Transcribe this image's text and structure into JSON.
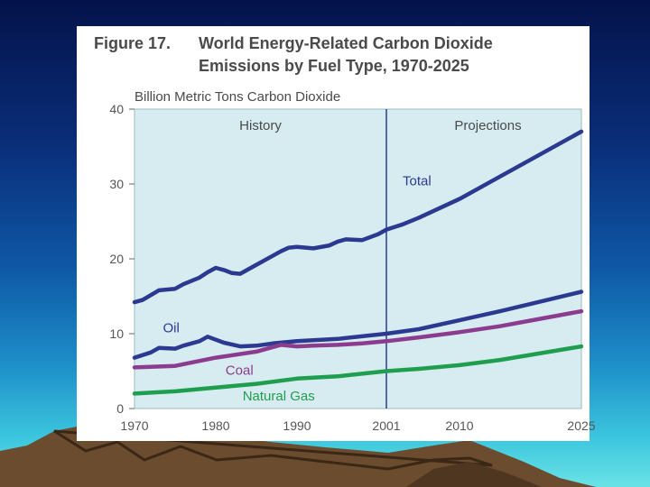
{
  "colors": {
    "plot_background": "#d7ecf0",
    "total": "#2b3990",
    "oil": "#2b3990",
    "coal": "#8b3c8f",
    "natural_gas": "#1f9e4f",
    "text": "#4a4a4a",
    "divider": "#2b3990"
  },
  "figure": {
    "prefix": "Figure 17.",
    "title_line1": "World Energy-Related Carbon Dioxide",
    "title_line2": "Emissions by Fuel Type, 1970-2025"
  },
  "chart_data": {
    "type": "line",
    "title": "Figure 17. World Energy-Related Carbon Dioxide Emissions by Fuel Type, 1970-2025",
    "ylabel": "Billion Metric Tons Carbon Dioxide",
    "xlabel": "",
    "xlim": [
      1970,
      2025
    ],
    "ylim": [
      0,
      40
    ],
    "x_ticks": [
      "1970",
      "1980",
      "1990",
      "2001",
      "2010",
      "2025"
    ],
    "x_tick_values": [
      1970,
      1980,
      1990,
      2001,
      2010,
      2025
    ],
    "y_ticks": [
      "0",
      "10",
      "20",
      "30",
      "40"
    ],
    "y_tick_values": [
      0,
      10,
      20,
      30,
      40
    ],
    "divider_year": 2001,
    "region_labels": {
      "history": "History",
      "projections": "Projections"
    },
    "series": [
      {
        "name": "Total",
        "color_key": "total",
        "label_pos": {
          "x": 2003,
          "y": 29.8
        },
        "x": [
          1970,
          1971,
          1973,
          1975,
          1976,
          1978,
          1979,
          1980,
          1981,
          1982,
          1983,
          1985,
          1987,
          1988,
          1989,
          1990,
          1992,
          1994,
          1995,
          1996,
          1998,
          2000,
          2001,
          2003,
          2005,
          2010,
          2015,
          2020,
          2025
        ],
        "y": [
          14.2,
          14.5,
          15.8,
          16.0,
          16.6,
          17.5,
          18.2,
          18.8,
          18.5,
          18.1,
          18.0,
          19.2,
          20.4,
          21.0,
          21.5,
          21.6,
          21.4,
          21.8,
          22.3,
          22.6,
          22.5,
          23.3,
          23.9,
          24.6,
          25.5,
          28.0,
          31.0,
          34.0,
          37.0
        ]
      },
      {
        "name": "Oil",
        "color_key": "oil",
        "label_pos": {
          "x": 1973.5,
          "y": 10.2
        },
        "x": [
          1970,
          1972,
          1973,
          1975,
          1976,
          1978,
          1979,
          1981,
          1983,
          1985,
          1987,
          1990,
          1995,
          2001,
          2005,
          2010,
          2015,
          2020,
          2025
        ],
        "y": [
          6.8,
          7.5,
          8.1,
          8.0,
          8.4,
          9.0,
          9.6,
          8.8,
          8.3,
          8.4,
          8.7,
          9.0,
          9.3,
          10.0,
          10.6,
          11.8,
          13.0,
          14.3,
          15.6
        ]
      },
      {
        "name": "Coal",
        "color_key": "coal",
        "label_pos": {
          "x": 1981.2,
          "y": 4.5
        },
        "x": [
          1970,
          1975,
          1980,
          1985,
          1988,
          1990,
          1992,
          1995,
          1998,
          2001,
          2005,
          2010,
          2015,
          2020,
          2025
        ],
        "y": [
          5.5,
          5.7,
          6.8,
          7.6,
          8.5,
          8.3,
          8.4,
          8.5,
          8.7,
          9.0,
          9.5,
          10.2,
          11.0,
          12.0,
          13.0
        ]
      },
      {
        "name": "Natural Gas",
        "color_key": "natural_gas",
        "label_pos": {
          "x": 1983.3,
          "y": 1.1
        },
        "x": [
          1970,
          1975,
          1980,
          1985,
          1990,
          1995,
          2001,
          2005,
          2010,
          2015,
          2020,
          2025
        ],
        "y": [
          2.0,
          2.3,
          2.8,
          3.3,
          4.0,
          4.3,
          5.0,
          5.3,
          5.8,
          6.5,
          7.4,
          8.3
        ]
      }
    ]
  }
}
